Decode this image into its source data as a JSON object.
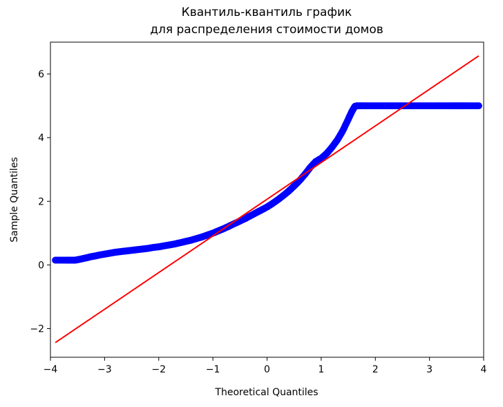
{
  "chart_data": {
    "type": "scatter",
    "title": [
      "Квантиль-квантиль график",
      "для распределения стоимости домов"
    ],
    "xlabel": "Theoretical Quantiles",
    "ylabel": "Sample Quantiles",
    "xlim": [
      -4.0,
      4.0
    ],
    "ylim": [
      -2.9,
      7.0
    ],
    "xticks": [
      -4,
      -3,
      -2,
      -1,
      0,
      1,
      2,
      3,
      4
    ],
    "xtick_labels": [
      "−4",
      "−3",
      "−2",
      "−1",
      "0",
      "1",
      "2",
      "3",
      "4"
    ],
    "yticks": [
      -2,
      0,
      2,
      4,
      6
    ],
    "ytick_labels": [
      "−2",
      "0",
      "2",
      "4",
      "6"
    ],
    "grid": false,
    "colors": {
      "points": "#0000ff",
      "line": "#ff0000",
      "axes": "#000000"
    },
    "series": [
      {
        "kind": "points",
        "x": [
          -3.91,
          -3.72,
          -3.62,
          -3.55,
          -3.48,
          -3.4,
          -3.32,
          -3.25,
          -3.18,
          -3.1,
          -3.0,
          -2.9,
          -2.8,
          -2.7,
          -2.6,
          -2.5,
          -2.4,
          -2.3,
          -2.2,
          -2.1,
          -2.0,
          -1.9,
          -1.8,
          -1.7,
          -1.6,
          -1.5,
          -1.4,
          -1.3,
          -1.2,
          -1.1,
          -1.0,
          -0.9,
          -0.8,
          -0.7,
          -0.6,
          -0.5,
          -0.4,
          -0.3,
          -0.2,
          -0.1,
          0.0,
          0.1,
          0.2,
          0.3,
          0.4,
          0.5,
          0.6,
          0.7,
          0.8,
          0.9,
          1.0,
          1.1,
          1.2,
          1.3,
          1.4,
          1.5,
          1.56,
          1.62,
          1.66,
          1.8,
          2.0,
          2.2,
          2.4,
          2.6,
          2.8,
          3.0,
          3.2,
          3.4,
          3.55,
          3.7,
          3.91
        ],
        "y": [
          0.15,
          0.15,
          0.15,
          0.15,
          0.17,
          0.2,
          0.23,
          0.26,
          0.28,
          0.31,
          0.34,
          0.37,
          0.4,
          0.42,
          0.44,
          0.46,
          0.48,
          0.5,
          0.52,
          0.55,
          0.57,
          0.6,
          0.63,
          0.66,
          0.7,
          0.74,
          0.78,
          0.83,
          0.88,
          0.94,
          1.0,
          1.07,
          1.14,
          1.22,
          1.3,
          1.38,
          1.46,
          1.55,
          1.64,
          1.73,
          1.82,
          1.93,
          2.05,
          2.18,
          2.32,
          2.48,
          2.65,
          2.85,
          3.07,
          3.25,
          3.35,
          3.5,
          3.7,
          3.93,
          4.22,
          4.58,
          4.8,
          4.98,
          5.0,
          5.0,
          5.0,
          5.0,
          5.0,
          5.0,
          5.0,
          5.0,
          5.0,
          5.0,
          5.0,
          5.0,
          5.0
        ]
      },
      {
        "kind": "line",
        "x": [
          -3.91,
          3.91
        ],
        "y": [
          -2.44,
          6.57
        ]
      }
    ]
  }
}
